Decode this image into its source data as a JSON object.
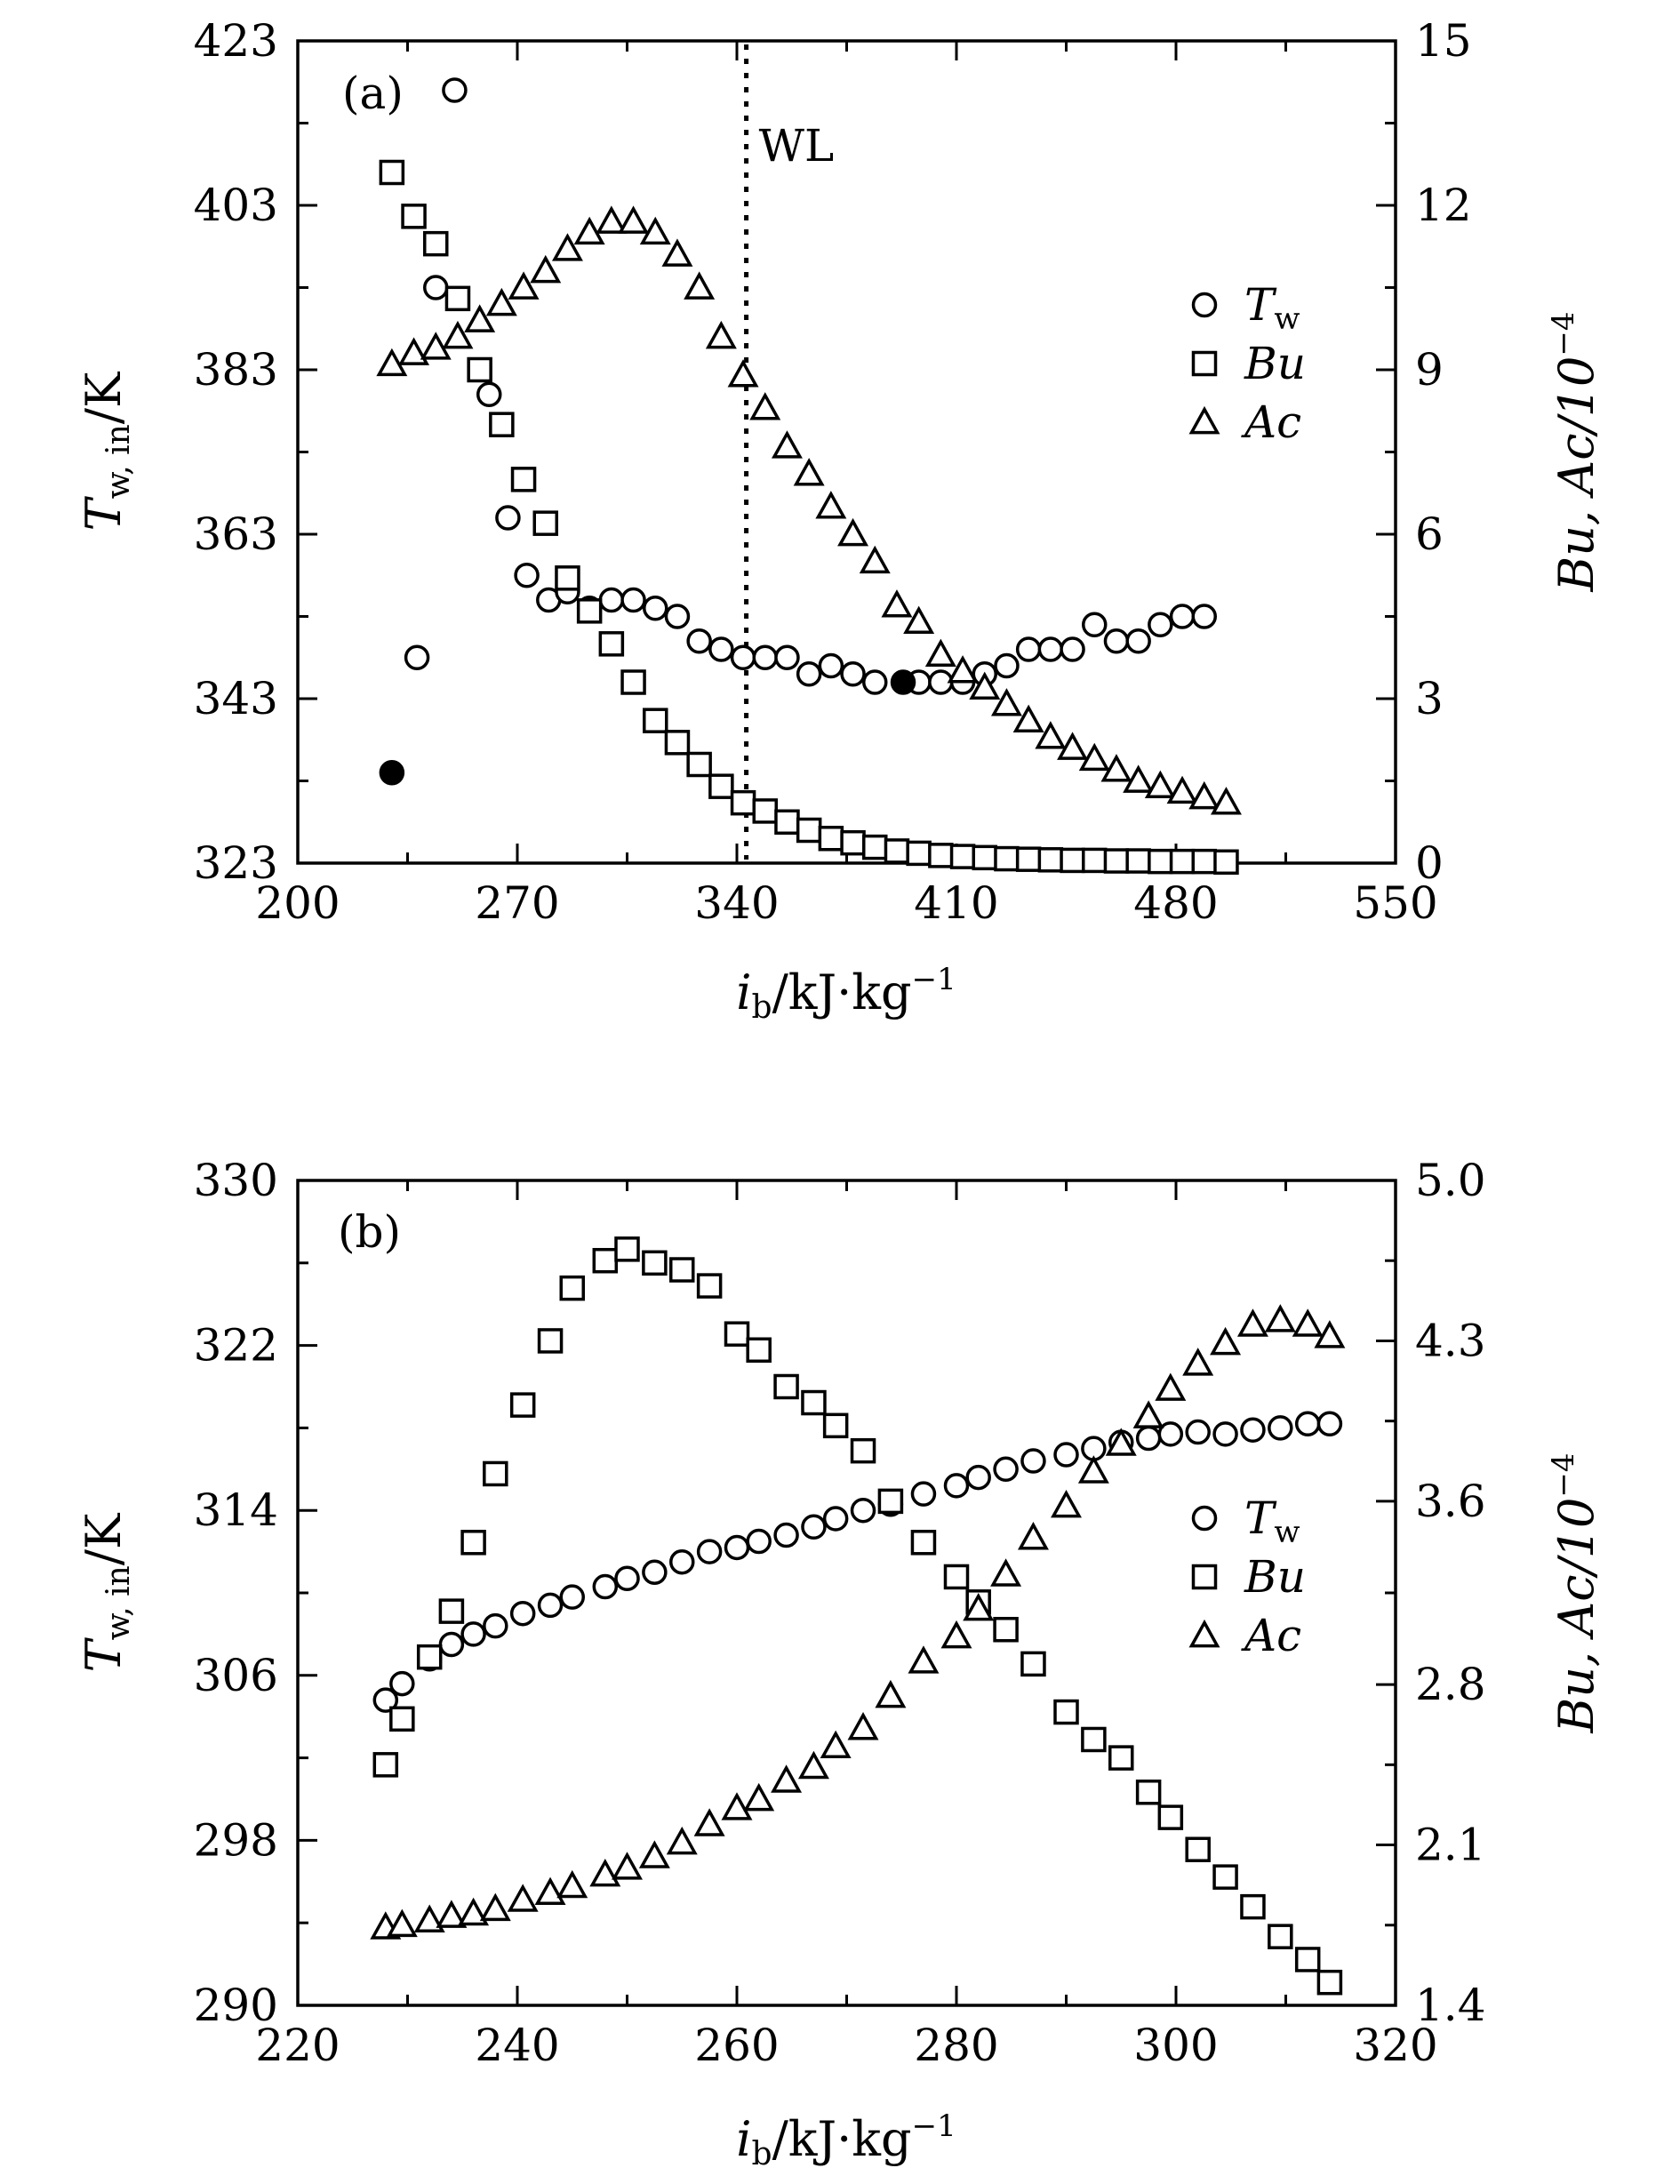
{
  "chart_data": [
    {
      "id": "a",
      "type": "scatter",
      "panel_label": "(a)",
      "xlabel": {
        "main": "i",
        "sub": "b",
        "rest": "/kJ·kg",
        "sup": "−1"
      },
      "ylabel_left": {
        "main": "T",
        "sub": "w, in",
        "rest": "/K"
      },
      "ylabel_right": "Bu, Ac/10",
      "ylabel_right_sup": "−4",
      "xlim": [
        200,
        550
      ],
      "xticks": [
        200,
        270,
        340,
        410,
        480,
        550
      ],
      "ylim_left": [
        323,
        423
      ],
      "yticks_left": [
        323,
        343,
        363,
        383,
        403,
        423
      ],
      "ylim_right": [
        0,
        15
      ],
      "yticks_right": [
        0,
        3,
        6,
        9,
        12,
        15
      ],
      "annotation": {
        "text": "WL",
        "x": 343
      },
      "legend": [
        {
          "marker": "circle",
          "main": "T",
          "sub": "w"
        },
        {
          "marker": "square",
          "main": "Bu",
          "sub": ""
        },
        {
          "marker": "triangle",
          "main": "Ac",
          "sub": ""
        }
      ],
      "series": [
        {
          "name": "Tw",
          "marker": "circle",
          "axis": "left",
          "x": [
            238,
            250,
            244,
            261,
            267,
            273,
            280,
            286,
            293,
            300,
            307,
            314,
            321,
            328,
            335,
            342,
            349,
            356,
            363,
            370,
            377,
            384,
            398,
            405,
            412,
            419,
            426,
            433,
            440,
            447,
            454,
            461,
            468,
            475,
            482,
            489
          ],
          "y": [
            348,
            417,
            393,
            380,
            365,
            358,
            355,
            356,
            354,
            355,
            355,
            354,
            353,
            350,
            349,
            348,
            348,
            348,
            346,
            347,
            346,
            345,
            345,
            345,
            345,
            346,
            347,
            349,
            349,
            349,
            352,
            350,
            350,
            352,
            353,
            353
          ]
        },
        {
          "name": "Tw (highlighted)",
          "marker": "circle-filled",
          "axis": "left",
          "x": [
            230,
            393
          ],
          "y": [
            334,
            345
          ]
        },
        {
          "name": "Bu",
          "marker": "square",
          "axis": "right",
          "x": [
            230,
            237,
            244,
            251,
            258,
            265,
            272,
            279,
            286,
            293,
            300,
            307,
            314,
            321,
            328,
            335,
            342,
            349,
            356,
            363,
            370,
            377,
            384,
            391,
            398,
            405,
            412,
            419,
            426,
            433,
            440,
            447,
            454,
            461,
            468,
            475,
            482,
            489,
            496
          ],
          "y": [
            12.6,
            11.8,
            11.3,
            10.3,
            9.0,
            8.0,
            7.0,
            6.2,
            5.2,
            4.6,
            4.0,
            3.3,
            2.6,
            2.2,
            1.8,
            1.4,
            1.1,
            0.95,
            0.75,
            0.6,
            0.45,
            0.37,
            0.29,
            0.22,
            0.18,
            0.14,
            0.12,
            0.1,
            0.08,
            0.07,
            0.06,
            0.05,
            0.05,
            0.04,
            0.04,
            0.03,
            0.03,
            0.03,
            0.02
          ]
        },
        {
          "name": "Ac",
          "marker": "triangle",
          "axis": "right",
          "x": [
            230,
            237,
            244,
            251,
            258,
            265,
            272,
            279,
            286,
            293,
            300,
            307,
            314,
            321,
            328,
            335,
            342,
            349,
            356,
            363,
            370,
            377,
            384,
            391,
            398,
            405,
            412,
            419,
            426,
            433,
            440,
            447,
            454,
            461,
            468,
            475,
            482,
            489,
            496
          ],
          "y": [
            9.1,
            9.3,
            9.4,
            9.6,
            9.9,
            10.2,
            10.5,
            10.8,
            11.2,
            11.5,
            11.7,
            11.7,
            11.5,
            11.1,
            10.5,
            9.6,
            8.9,
            8.3,
            7.6,
            7.1,
            6.5,
            6.0,
            5.5,
            4.7,
            4.4,
            3.8,
            3.5,
            3.2,
            2.9,
            2.6,
            2.3,
            2.1,
            1.9,
            1.7,
            1.5,
            1.4,
            1.3,
            1.2,
            1.1
          ]
        }
      ]
    },
    {
      "id": "b",
      "type": "scatter",
      "panel_label": "(b)",
      "xlabel": {
        "main": "i",
        "sub": "b",
        "rest": "/kJ·kg",
        "sup": "−1"
      },
      "ylabel_left": {
        "main": "T",
        "sub": "w, in",
        "rest": "/K"
      },
      "ylabel_right": "Bu, Ac/10",
      "ylabel_right_sup": "−4",
      "xlim": [
        220,
        320
      ],
      "xticks": [
        220,
        240,
        260,
        280,
        300,
        320
      ],
      "ylim_left": [
        290,
        330
      ],
      "yticks_left": [
        290,
        298,
        306,
        314,
        322,
        330
      ],
      "ylim_right": [
        1.4,
        5.0
      ],
      "yticks_right": [
        "1.4",
        "2.1",
        "2.8",
        "3.6",
        "4.3",
        "5.0"
      ],
      "legend": [
        {
          "marker": "circle",
          "main": "T",
          "sub": "w"
        },
        {
          "marker": "square",
          "main": "Bu",
          "sub": ""
        },
        {
          "marker": "triangle",
          "main": "Ac",
          "sub": ""
        }
      ],
      "series": [
        {
          "name": "Tw",
          "marker": "circle",
          "axis": "left",
          "x": [
            228,
            229.5,
            232,
            234,
            236,
            238,
            240.5,
            243,
            245,
            248,
            250,
            252.5,
            255,
            257.5,
            260,
            262,
            264.5,
            267,
            269,
            271.5,
            274,
            277,
            280,
            282,
            284.5,
            287,
            290,
            292.5,
            295,
            297.5,
            299.5,
            302,
            304.5,
            307,
            309.5,
            312,
            314
          ],
          "y": [
            304.8,
            305.6,
            306.8,
            307.5,
            308.0,
            308.4,
            309.0,
            309.4,
            309.8,
            310.3,
            310.7,
            311.0,
            311.5,
            312.0,
            312.2,
            312.5,
            312.8,
            313.2,
            313.6,
            314.0,
            314.3,
            314.8,
            315.2,
            315.6,
            316.0,
            316.4,
            316.7,
            317.0,
            317.3,
            317.5,
            317.7,
            317.8,
            317.7,
            317.9,
            318.0,
            318.2,
            318.2
          ]
        },
        {
          "name": "Bu",
          "marker": "square",
          "axis": "right",
          "x": [
            228,
            229.5,
            232,
            234,
            236,
            238,
            240.5,
            243,
            245,
            248,
            250,
            252.5,
            255,
            257.5,
            260,
            262,
            264.5,
            267,
            269,
            271.5,
            274,
            277,
            280,
            282,
            284.5,
            287,
            290,
            292.5,
            295,
            297.5,
            299.5,
            302,
            304.5,
            307,
            309.5,
            312,
            314
          ],
          "y": [
            2.45,
            2.65,
            2.92,
            3.12,
            3.42,
            3.72,
            4.02,
            4.3,
            4.53,
            4.65,
            4.7,
            4.64,
            4.61,
            4.54,
            4.33,
            4.26,
            4.1,
            4.03,
            3.93,
            3.82,
            3.6,
            3.42,
            3.27,
            3.16,
            3.04,
            2.89,
            2.68,
            2.56,
            2.48,
            2.33,
            2.22,
            2.08,
            1.96,
            1.83,
            1.7,
            1.6,
            1.5
          ]
        },
        {
          "name": "Ac",
          "marker": "triangle",
          "axis": "right",
          "x": [
            228,
            229.5,
            232,
            234,
            236,
            238,
            240.5,
            243,
            245,
            248,
            250,
            252.5,
            255,
            257.5,
            260,
            262,
            264.5,
            267,
            269,
            271.5,
            274,
            277,
            280,
            282,
            284.5,
            287,
            290,
            292.5,
            295,
            297.5,
            299.5,
            302,
            304.5,
            307,
            309.5,
            312,
            314
          ],
          "y": [
            1.74,
            1.75,
            1.77,
            1.79,
            1.8,
            1.82,
            1.86,
            1.89,
            1.92,
            1.97,
            2.0,
            2.05,
            2.11,
            2.19,
            2.26,
            2.3,
            2.38,
            2.44,
            2.53,
            2.61,
            2.75,
            2.9,
            3.01,
            3.13,
            3.28,
            3.44,
            3.58,
            3.73,
            3.85,
            3.97,
            4.09,
            4.2,
            4.29,
            4.37,
            4.39,
            4.37,
            4.32
          ]
        }
      ]
    }
  ]
}
